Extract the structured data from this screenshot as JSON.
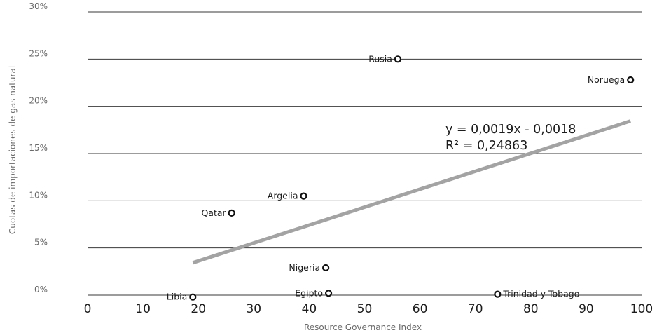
{
  "chart_data": {
    "type": "scatter",
    "title": "",
    "xlabel": "Resource Governance Index",
    "ylabel": "Cuotas de importaciones de gas natural",
    "xlim": [
      0,
      100
    ],
    "ylim": [
      0,
      0.3
    ],
    "x_ticks": [
      "0",
      "10",
      "20",
      "30",
      "40",
      "50",
      "60",
      "70",
      "80",
      "90",
      "100"
    ],
    "y_ticks": [
      "0%",
      "5%",
      "10%",
      "15%",
      "20%",
      "25%",
      "30%"
    ],
    "grid": "horizontal",
    "points": [
      {
        "label": "Rusia",
        "x": 56,
        "y": 0.25
      },
      {
        "label": "Noruega",
        "x": 98,
        "y": 0.228
      },
      {
        "label": "Argelia",
        "x": 39,
        "y": 0.105
      },
      {
        "label": "Qatar",
        "x": 26,
        "y": 0.087
      },
      {
        "label": "Nigeria",
        "x": 43,
        "y": 0.029
      },
      {
        "label": "Egipto",
        "x": 43.5,
        "y": 0.002
      },
      {
        "label": "Trinidad y Tobago",
        "x": 74,
        "y": 0.001
      },
      {
        "label": "Libia",
        "x": 19,
        "y": -0.002
      }
    ],
    "trendline": {
      "x_range": [
        19,
        98
      ],
      "equation": "y = 0,0019x - 0,0018",
      "r_squared": "R² = 0,24863"
    }
  }
}
